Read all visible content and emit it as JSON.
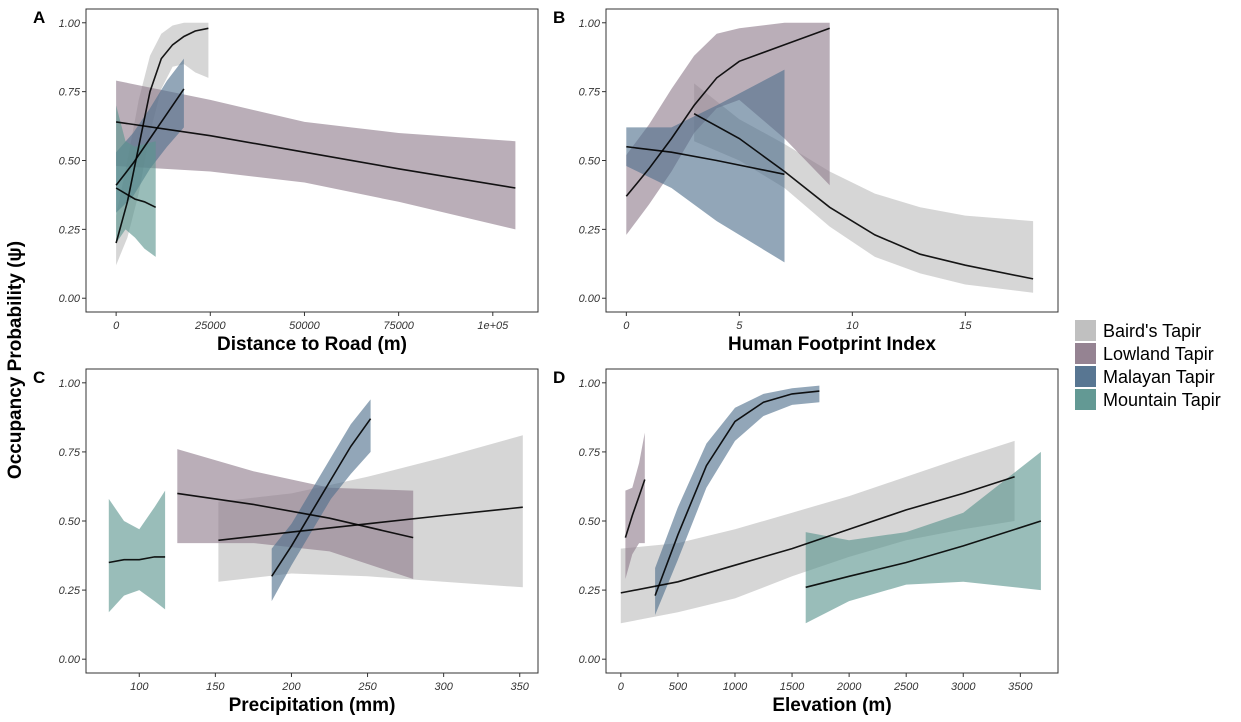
{
  "figure": {
    "ylabel": "Occupancy Probability (ψ)"
  },
  "colors": {
    "Baird's Tapir": "#bdbdbd",
    "Lowland Tapir": "#8f7c8c",
    "Malayan Tapir": "#4f6f8c",
    "Mountain Tapir": "#5b948e"
  },
  "legend": {
    "items": [
      "Baird's Tapir",
      "Lowland Tapir",
      "Malayan Tapir",
      "Mountain Tapir"
    ],
    "placement": "right"
  },
  "chart_data": [
    {
      "type": "line",
      "panel": "A",
      "xlabel": "Distance to Road (m)",
      "xlim": [
        -8000,
        112000
      ],
      "ylim": [
        -0.05,
        1.05
      ],
      "xticks": [
        0,
        25000,
        50000,
        75000,
        100000
      ],
      "xtick_labels": [
        "0",
        "25000",
        "50000",
        "75000",
        "1e+05"
      ],
      "yticks": [
        0,
        0.25,
        0.5,
        0.75,
        1.0
      ],
      "ytick_labels": [
        "0.00",
        "0.25",
        "0.50",
        "0.75",
        "1.00"
      ],
      "series": [
        {
          "species": "Baird's Tapir",
          "x": [
            0,
            3000,
            6000,
            9000,
            12000,
            15000,
            18000,
            21000,
            24500
          ],
          "y": [
            0.2,
            0.35,
            0.55,
            0.75,
            0.87,
            0.92,
            0.95,
            0.97,
            0.98
          ],
          "lower": [
            0.12,
            0.22,
            0.38,
            0.6,
            0.76,
            0.84,
            0.85,
            0.82,
            0.8
          ],
          "upper": [
            0.3,
            0.5,
            0.72,
            0.88,
            0.96,
            0.99,
            1.0,
            1.0,
            1.0
          ]
        },
        {
          "species": "Lowland Tapir",
          "x": [
            0,
            25000,
            50000,
            75000,
            106000
          ],
          "y": [
            0.64,
            0.59,
            0.53,
            0.47,
            0.4
          ],
          "lower": [
            0.48,
            0.46,
            0.42,
            0.35,
            0.25
          ],
          "upper": [
            0.79,
            0.72,
            0.64,
            0.6,
            0.57
          ]
        },
        {
          "species": "Malayan Tapir",
          "x": [
            0,
            4500,
            9000,
            13500,
            18000
          ],
          "y": [
            0.41,
            0.49,
            0.58,
            0.67,
            0.76
          ],
          "lower": [
            0.31,
            0.37,
            0.47,
            0.55,
            0.62
          ],
          "upper": [
            0.53,
            0.6,
            0.69,
            0.79,
            0.87
          ]
        },
        {
          "species": "Mountain Tapir",
          "x": [
            0,
            2500,
            5000,
            7500,
            10500
          ],
          "y": [
            0.4,
            0.38,
            0.36,
            0.35,
            0.33
          ],
          "lower": [
            0.2,
            0.25,
            0.22,
            0.18,
            0.15
          ],
          "upper": [
            0.7,
            0.57,
            0.55,
            0.56,
            0.57
          ]
        }
      ]
    },
    {
      "type": "line",
      "panel": "B",
      "xlabel": "Human Footprint Index",
      "xlim": [
        -0.9,
        19.1
      ],
      "ylim": [
        -0.05,
        1.05
      ],
      "xticks": [
        0,
        5,
        10,
        15
      ],
      "xtick_labels": [
        "0",
        "5",
        "10",
        "15"
      ],
      "yticks": [
        0,
        0.25,
        0.5,
        0.75,
        1.0
      ],
      "ytick_labels": [
        "0.00",
        "0.25",
        "0.50",
        "0.75",
        "1.00"
      ],
      "series": [
        {
          "species": "Baird's Tapir",
          "x": [
            3,
            5,
            7,
            9,
            11,
            13,
            15,
            18
          ],
          "y": [
            0.67,
            0.58,
            0.46,
            0.33,
            0.23,
            0.16,
            0.12,
            0.07
          ],
          "lower": [
            0.57,
            0.5,
            0.4,
            0.26,
            0.15,
            0.09,
            0.05,
            0.02
          ],
          "upper": [
            0.78,
            0.65,
            0.56,
            0.46,
            0.38,
            0.33,
            0.3,
            0.28
          ]
        },
        {
          "species": "Lowland Tapir",
          "x": [
            0,
            1,
            2,
            3,
            4,
            5,
            7,
            9
          ],
          "y": [
            0.37,
            0.47,
            0.58,
            0.7,
            0.8,
            0.86,
            0.92,
            0.98
          ],
          "lower": [
            0.23,
            0.34,
            0.46,
            0.6,
            0.69,
            0.72,
            0.58,
            0.41
          ],
          "upper": [
            0.52,
            0.63,
            0.76,
            0.88,
            0.96,
            0.98,
            1.0,
            1.0
          ]
        },
        {
          "species": "Malayan Tapir",
          "x": [
            0,
            2,
            4,
            7
          ],
          "y": [
            0.55,
            0.53,
            0.5,
            0.45
          ],
          "lower": [
            0.48,
            0.4,
            0.28,
            0.13
          ],
          "upper": [
            0.62,
            0.62,
            0.7,
            0.83
          ]
        }
      ]
    },
    {
      "type": "line",
      "panel": "C",
      "xlabel": "Precipitation (mm)",
      "xlim": [
        65,
        362
      ],
      "ylim": [
        -0.05,
        1.05
      ],
      "xticks": [
        100,
        150,
        200,
        250,
        300,
        350
      ],
      "xtick_labels": [
        "100",
        "150",
        "200",
        "250",
        "300",
        "350"
      ],
      "yticks": [
        0,
        0.25,
        0.5,
        0.75,
        1.0
      ],
      "ytick_labels": [
        "0.00",
        "0.25",
        "0.50",
        "0.75",
        "1.00"
      ],
      "series": [
        {
          "species": "Baird's Tapir",
          "x": [
            152,
            200,
            250,
            300,
            352
          ],
          "y": [
            0.43,
            0.46,
            0.49,
            0.52,
            0.55
          ],
          "lower": [
            0.28,
            0.31,
            0.3,
            0.28,
            0.26
          ],
          "upper": [
            0.57,
            0.6,
            0.66,
            0.73,
            0.81
          ]
        },
        {
          "species": "Lowland Tapir",
          "x": [
            125,
            175,
            225,
            280
          ],
          "y": [
            0.6,
            0.56,
            0.51,
            0.44
          ],
          "lower": [
            0.42,
            0.42,
            0.39,
            0.29
          ],
          "upper": [
            0.76,
            0.68,
            0.62,
            0.61
          ]
        },
        {
          "species": "Malayan Tapir",
          "x": [
            187,
            200,
            213,
            226,
            239,
            252
          ],
          "y": [
            0.3,
            0.41,
            0.53,
            0.65,
            0.77,
            0.87
          ],
          "lower": [
            0.21,
            0.34,
            0.46,
            0.58,
            0.67,
            0.75
          ],
          "upper": [
            0.4,
            0.49,
            0.61,
            0.73,
            0.85,
            0.94
          ]
        },
        {
          "species": "Mountain Tapir",
          "x": [
            80,
            90,
            100,
            110,
            117
          ],
          "y": [
            0.35,
            0.36,
            0.36,
            0.37,
            0.37
          ],
          "lower": [
            0.17,
            0.23,
            0.25,
            0.21,
            0.18
          ],
          "upper": [
            0.58,
            0.5,
            0.47,
            0.55,
            0.61
          ]
        }
      ]
    },
    {
      "type": "line",
      "panel": "D",
      "xlabel": "Elevation (m)",
      "xlim": [
        -130,
        3830
      ],
      "ylim": [
        -0.05,
        1.05
      ],
      "xticks": [
        0,
        500,
        1000,
        1500,
        2000,
        2500,
        3000,
        3500
      ],
      "xtick_labels": [
        "0",
        "500",
        "1000",
        "1500",
        "2000",
        "2500",
        "3000",
        "3500"
      ],
      "yticks": [
        0,
        0.25,
        0.5,
        0.75,
        1.0
      ],
      "ytick_labels": [
        "0.00",
        "0.25",
        "0.50",
        "0.75",
        "1.00"
      ],
      "series": [
        {
          "species": "Baird's Tapir",
          "x": [
            0,
            500,
            1000,
            1500,
            2000,
            2500,
            3000,
            3450
          ],
          "y": [
            0.24,
            0.28,
            0.34,
            0.4,
            0.47,
            0.54,
            0.6,
            0.66
          ],
          "lower": [
            0.13,
            0.17,
            0.22,
            0.3,
            0.37,
            0.43,
            0.47,
            0.5
          ],
          "upper": [
            0.4,
            0.42,
            0.47,
            0.53,
            0.59,
            0.66,
            0.73,
            0.79
          ]
        },
        {
          "species": "Lowland Tapir",
          "x": [
            40,
            100,
            160,
            210
          ],
          "y": [
            0.44,
            0.52,
            0.59,
            0.65
          ],
          "lower": [
            0.29,
            0.38,
            0.42,
            0.42
          ],
          "upper": [
            0.61,
            0.62,
            0.71,
            0.82
          ]
        },
        {
          "species": "Malayan Tapir",
          "x": [
            300,
            500,
            750,
            1000,
            1250,
            1500,
            1740
          ],
          "y": [
            0.23,
            0.45,
            0.7,
            0.86,
            0.93,
            0.96,
            0.97
          ],
          "lower": [
            0.16,
            0.36,
            0.62,
            0.79,
            0.88,
            0.92,
            0.93
          ],
          "upper": [
            0.33,
            0.55,
            0.78,
            0.91,
            0.96,
            0.98,
            0.99
          ]
        },
        {
          "species": "Mountain Tapir",
          "x": [
            1620,
            2000,
            2500,
            3000,
            3680
          ],
          "y": [
            0.26,
            0.3,
            0.35,
            0.41,
            0.5
          ],
          "lower": [
            0.13,
            0.21,
            0.27,
            0.28,
            0.25
          ],
          "upper": [
            0.46,
            0.43,
            0.46,
            0.53,
            0.75
          ]
        }
      ]
    }
  ]
}
